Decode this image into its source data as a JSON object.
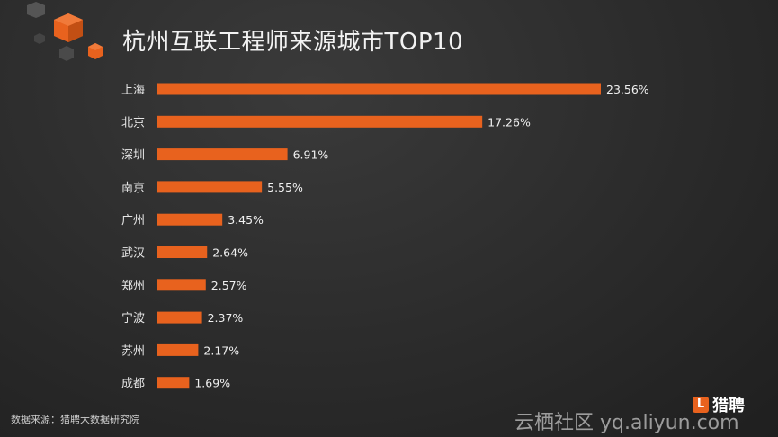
{
  "title": "杭州互联工程师来源城市TOP10",
  "source": "数据来源：猎聘大数据研究院",
  "brand": {
    "name": "猎聘"
  },
  "watermark": "云栖社区 yq.aliyun.com",
  "colors": {
    "bar": "#e8621e",
    "label": "#e6e6e6",
    "value": "#f0f0f0"
  },
  "chart_data": {
    "type": "bar",
    "orientation": "horizontal",
    "title": "杭州互联工程师来源城市TOP10",
    "xlabel": "",
    "ylabel": "",
    "unit": "%",
    "categories": [
      "上海",
      "北京",
      "深圳",
      "南京",
      "广州",
      "武汉",
      "郑州",
      "宁波",
      "苏州",
      "成都"
    ],
    "values": [
      23.56,
      17.26,
      6.91,
      5.55,
      3.45,
      2.64,
      2.57,
      2.37,
      2.17,
      1.69
    ],
    "value_labels": [
      "23.56%",
      "17.26%",
      "6.91%",
      "5.55%",
      "3.45%",
      "2.64%",
      "2.57%",
      "2.37%",
      "2.17%",
      "1.69%"
    ],
    "grid": false,
    "legend": "none"
  }
}
